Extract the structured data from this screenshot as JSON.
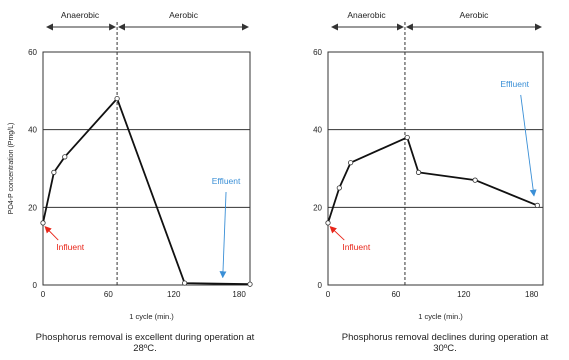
{
  "chart_data": [
    {
      "type": "line",
      "xlabel": "1 cycle (min.)",
      "ylabel": "PO4-P concentration (Pmg/L)",
      "xlim": [
        0,
        190
      ],
      "ylim": [
        0,
        60
      ],
      "xticks": [
        0,
        60,
        120,
        180
      ],
      "yticks": [
        0,
        20,
        40,
        60
      ],
      "gridlines_y": [
        20,
        40
      ],
      "phase_divider_x": 68,
      "phases": [
        "Anaerobic",
        "Aerobic"
      ],
      "points": [
        {
          "x": 0,
          "y": 16
        },
        {
          "x": 10,
          "y": 29
        },
        {
          "x": 20,
          "y": 33
        },
        {
          "x": 68,
          "y": 48
        },
        {
          "x": 130,
          "y": 0.5
        },
        {
          "x": 190,
          "y": 0.2
        }
      ],
      "annotations": [
        {
          "text": "Influent",
          "color": "#e8261a",
          "x": 25,
          "y": 9,
          "arrow_to": {
            "x": 2,
            "y": 15
          }
        },
        {
          "text": "Effluent",
          "color": "#3a8fd6",
          "x": 168,
          "y": 26,
          "arrow_to": {
            "x": 165,
            "y": 2
          }
        }
      ],
      "caption": "Phosphorus removal is excellent during operation at 28ºC."
    },
    {
      "type": "line",
      "xlabel": "1 cycle (min.)",
      "ylabel": "",
      "xlim": [
        0,
        190
      ],
      "ylim": [
        0,
        60
      ],
      "xticks": [
        0,
        60,
        120,
        180
      ],
      "yticks": [
        0,
        20,
        40,
        60
      ],
      "gridlines_y": [
        20,
        40
      ],
      "phase_divider_x": 68,
      "phases": [
        "Anaerobic",
        "Aerobic"
      ],
      "points": [
        {
          "x": 0,
          "y": 16
        },
        {
          "x": 10,
          "y": 25
        },
        {
          "x": 20,
          "y": 31.5
        },
        {
          "x": 70,
          "y": 38
        },
        {
          "x": 80,
          "y": 29
        },
        {
          "x": 130,
          "y": 27
        },
        {
          "x": 185,
          "y": 20.5
        }
      ],
      "annotations": [
        {
          "text": "Influent",
          "color": "#e8261a",
          "x": 25,
          "y": 9,
          "arrow_to": {
            "x": 2,
            "y": 15
          }
        },
        {
          "text": "Effluent",
          "color": "#3a8fd6",
          "x": 165,
          "y": 51,
          "arrow_to": {
            "x": 182,
            "y": 23
          }
        }
      ],
      "caption": "Phosphorus removal declines during operation at 30ºC."
    }
  ]
}
